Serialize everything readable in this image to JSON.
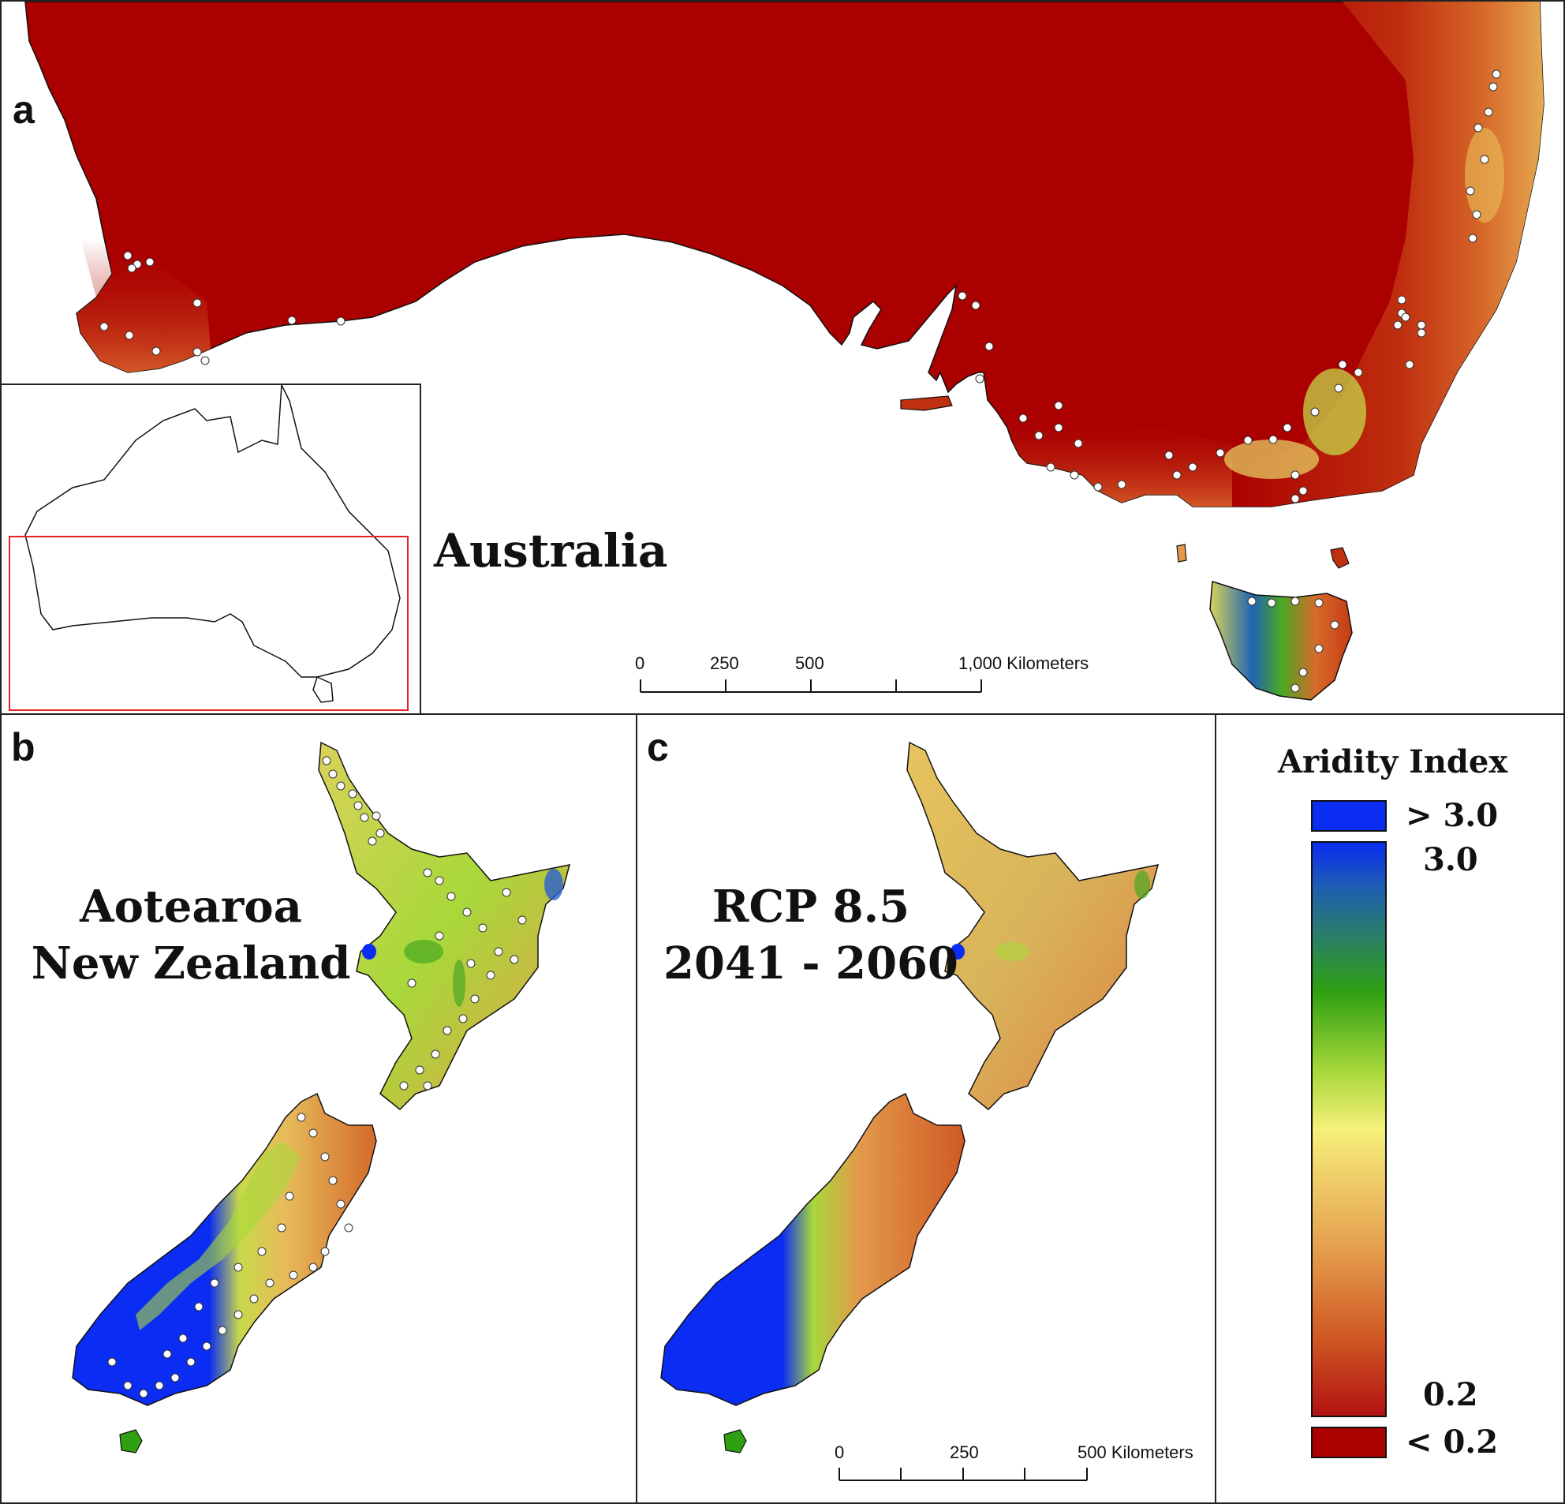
{
  "panels": {
    "a": {
      "label": "a",
      "title": "Australia"
    },
    "b": {
      "label": "b",
      "title_line1": "Aotearoa",
      "title_line2": "New Zealand"
    },
    "c": {
      "label": "c",
      "title_line1": "RCP 8.5",
      "title_line2": "2041 - 2060"
    }
  },
  "scale_a": {
    "ticks": [
      "0",
      "250",
      "500",
      "1,000 Kilometers"
    ]
  },
  "scale_c": {
    "ticks": [
      "0",
      "250",
      "500 Kilometers"
    ]
  },
  "legend": {
    "title": "Aridity Index",
    "top_box_label": "> 3.0",
    "ramp_top_label": "3.0",
    "ramp_bottom_label": "0.2",
    "bottom_box_label": "< 0.2",
    "colors": {
      "high": "#0b2cf2",
      "mid_blue": "#1e5fb0",
      "green": "#2ea011",
      "light_green": "#a8d83a",
      "yellow": "#f6f07a",
      "orange": "#e39a4b",
      "red": "#b21212",
      "low": "#aa0000"
    }
  }
}
